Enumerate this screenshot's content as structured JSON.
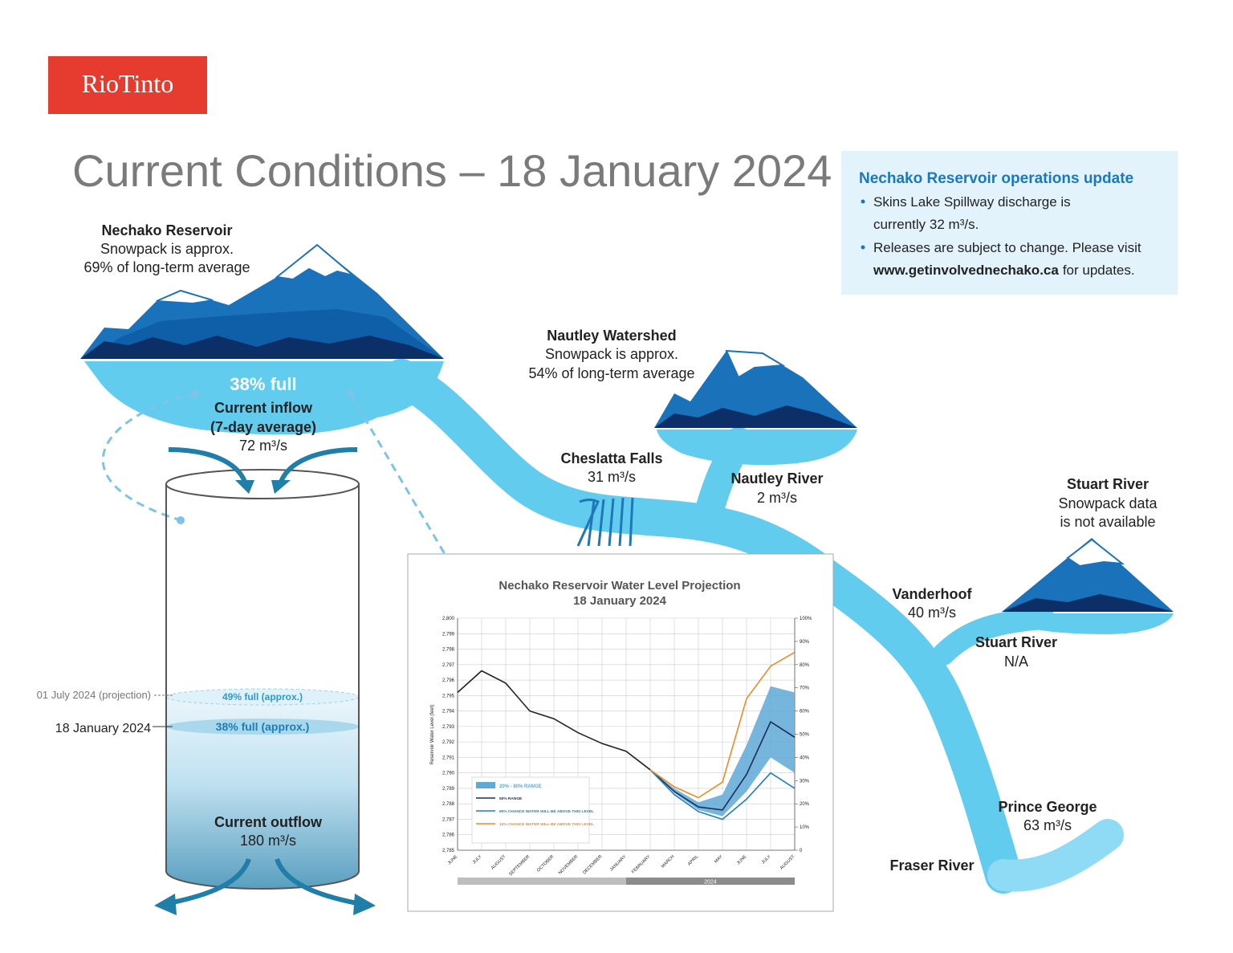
{
  "logo": "RioTinto",
  "title": "Current Conditions – 18 January 2024",
  "update_box": {
    "title": "Nechako Reservoir operations update",
    "bullets": [
      {
        "lines": [
          "Skins Lake Spillway discharge is",
          "currently 32 m³/s."
        ]
      },
      {
        "lines": [
          "Releases are subject to change. Please visit"
        ],
        "link": "www.getinvolvednechako.ca",
        "after": "for updates."
      }
    ]
  },
  "nechako_reservoir": {
    "name": "Nechako Reservoir",
    "snowpack": [
      "Snowpack is approx.",
      "69% of long-term average"
    ],
    "level": "38% full",
    "inflow": [
      "Current inflow",
      "(7-day average)",
      "72 m³/s"
    ]
  },
  "nautley_watershed": {
    "name": "Nautley Watershed",
    "snowpack": [
      "Snowpack is approx.",
      "54% of long-term average"
    ]
  },
  "cheslatta_falls": {
    "name": "Cheslatta Falls",
    "flow": "31 m³/s"
  },
  "nautley_river": {
    "name": "Nautley River",
    "flow": "2 m³/s"
  },
  "stuart_watershed": {
    "name": "Stuart River",
    "snowpack": [
      "Snowpack data",
      "is not available"
    ]
  },
  "vanderhoof": {
    "name": "Vanderhoof",
    "flow": "40 m³/s"
  },
  "stuart_river": {
    "name": "Stuart River",
    "flow": "N/A"
  },
  "prince_george": {
    "name": "Prince George",
    "flow": "63 m³/s"
  },
  "fraser_river": {
    "name": "Fraser River"
  },
  "storage": {
    "projection_date": "01 July 2024 (projection)",
    "projection_level": "49% full (approx.)",
    "current_date": "18 January 2024",
    "current_level": "38% full (approx.)",
    "outflow": [
      "Current outflow",
      "180 m³/s"
    ]
  },
  "projection_chart": {
    "type": "line",
    "title": "Nechako Reservoir Water Level Projection",
    "subtitle": "18 January 2024",
    "y_label": "Reservoir Water Level (feet)",
    "categories": [
      "JUNE",
      "JULY",
      "AUGUST",
      "SEPTEMBER",
      "OCTOBER",
      "NOVEMBER",
      "DECEMBER",
      "JANUARY",
      "FEBRUARY",
      "MARCH",
      "APRIL",
      "MAY",
      "JUNE",
      "JULY",
      "AUGUST"
    ],
    "x_group": "2024",
    "ylim": [
      2785,
      2800
    ],
    "yticks": [
      {
        "value": 2785,
        "label": "2,785"
      },
      {
        "value": 2786,
        "label": "2,786"
      },
      {
        "value": 2787,
        "label": "2,787"
      },
      {
        "value": 2788,
        "label": "2,788"
      },
      {
        "value": 2789,
        "label": "2,789"
      },
      {
        "value": 2790,
        "label": "2,790"
      },
      {
        "value": 2791,
        "label": "2,791"
      },
      {
        "value": 2792,
        "label": "2,792"
      },
      {
        "value": 2793,
        "label": "2,793"
      },
      {
        "value": 2794,
        "label": "2,794"
      },
      {
        "value": 2795,
        "label": "2,795"
      },
      {
        "value": 2796,
        "label": "2,796"
      },
      {
        "value": 2797,
        "label": "2,797"
      },
      {
        "value": 2798,
        "label": "2,798"
      },
      {
        "value": 2799,
        "label": "2,799"
      },
      {
        "value": 2800,
        "label": "2,800"
      }
    ],
    "y2lim": [
      0,
      100
    ],
    "y2ticks": [
      0,
      {
        "value": 10,
        "label": "10%"
      },
      {
        "value": 20,
        "label": "20%"
      },
      {
        "value": 30,
        "label": "30%"
      },
      {
        "value": 40,
        "label": "40%"
      },
      {
        "value": 50,
        "label": "50%"
      },
      {
        "value": 60,
        "label": "60%"
      },
      {
        "value": 70,
        "label": "70%"
      },
      {
        "value": 80,
        "label": "80%"
      },
      {
        "value": 90,
        "label": "90%"
      },
      {
        "value": 100,
        "label": "100%"
      }
    ],
    "grid": true,
    "band": {
      "name": "20% - 80% RANGE",
      "color": "#5ea9d6",
      "low": [
        null,
        null,
        null,
        null,
        null,
        null,
        null,
        null,
        2790.2,
        2788.7,
        2787.6,
        2787.2,
        2788.8,
        2791.0,
        2790.0
      ],
      "high": [
        null,
        null,
        null,
        null,
        null,
        null,
        null,
        null,
        2790.2,
        2789.0,
        2788.1,
        2788.6,
        2791.8,
        2795.6,
        2795.2
      ]
    },
    "series": [
      {
        "color": "#222222",
        "values": [
          2795.2,
          2796.6,
          2795.8,
          2794.0,
          2793.5,
          2792.6,
          2791.9,
          2791.4,
          2790.2,
          null,
          null,
          null,
          null,
          null,
          null
        ]
      },
      {
        "name": "50% RANGE",
        "color": "#1c2c5c",
        "values": [
          null,
          null,
          null,
          null,
          null,
          null,
          null,
          null,
          2790.2,
          2788.8,
          2787.8,
          2787.6,
          2789.9,
          2793.3,
          2792.3
        ]
      },
      {
        "name": "90% CHANCE WATER WILL BE ABOVE THIS LEVEL",
        "color": "#1b7fc4",
        "values": [
          null,
          null,
          null,
          null,
          null,
          null,
          null,
          null,
          2790.2,
          2788.6,
          2787.5,
          2787.0,
          2788.3,
          2790.0,
          2789.0
        ]
      },
      {
        "name": "10% CHANCE WATER WILL BE ABOVE THIS LEVEL",
        "color": "#f08a24",
        "values": [
          null,
          null,
          null,
          null,
          null,
          null,
          null,
          null,
          2790.2,
          2789.1,
          2788.4,
          2789.4,
          2794.8,
          2796.9,
          2797.8
        ]
      }
    ]
  }
}
